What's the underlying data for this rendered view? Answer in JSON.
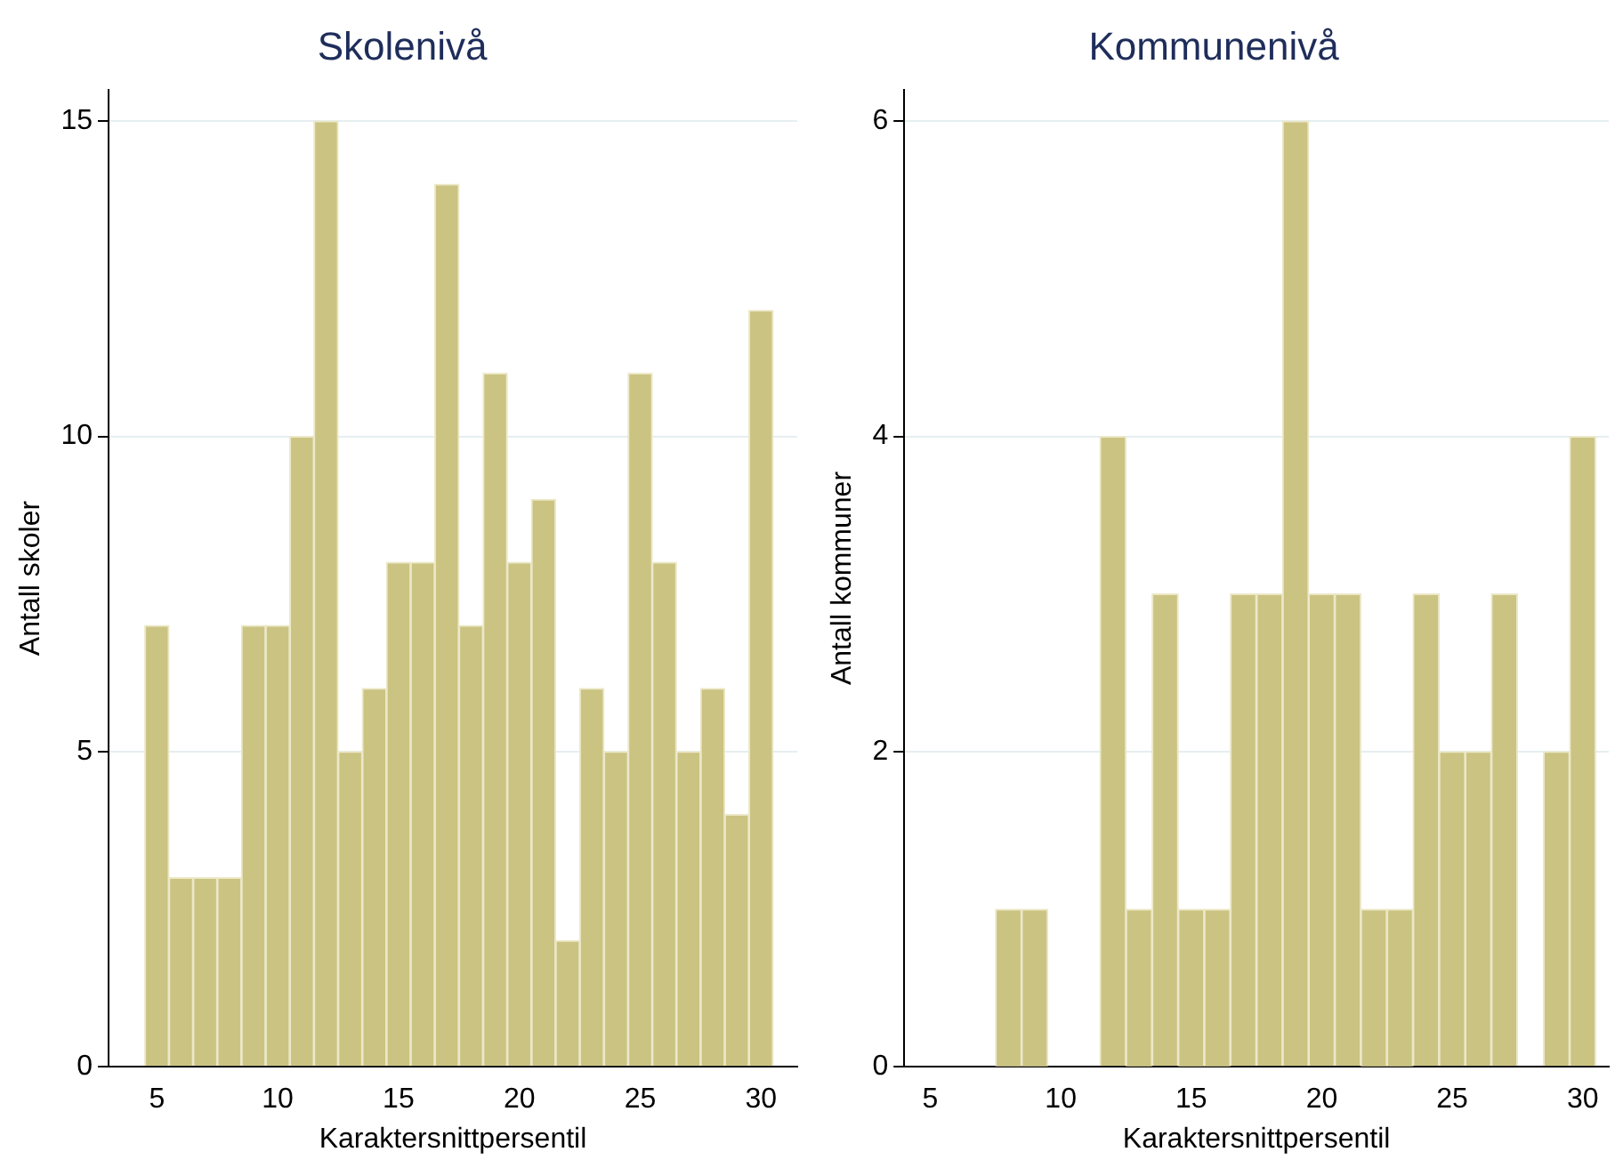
{
  "chart_data": [
    {
      "type": "histogram",
      "title": "Skolenivå",
      "xlabel": "Karaktersnittpersentil",
      "ylabel": "Antall skoler",
      "color": "#cbc382",
      "bins": [
        4.5,
        5.5,
        6.5,
        7.5,
        8.5,
        9.5,
        10.5,
        11.5,
        12.5,
        13.5,
        14.5,
        15.5,
        16.5,
        17.5,
        18.5,
        19.5,
        20.5,
        21.5,
        22.5,
        23.5,
        24.5,
        25.5,
        26.5,
        27.5,
        28.5,
        29.5,
        30.5
      ],
      "values": [
        7,
        3,
        3,
        3,
        7,
        7,
        10,
        15,
        5,
        6,
        8,
        8,
        14,
        7,
        11,
        8,
        9,
        2,
        6,
        5,
        11,
        8,
        5,
        6,
        4,
        12
      ],
      "xlim": [
        3,
        31.5
      ],
      "xticks": [
        5,
        10,
        15,
        20,
        25,
        30
      ],
      "ylim": [
        0,
        15.5
      ],
      "yticks": [
        0,
        5,
        10,
        15
      ],
      "grid": "y",
      "legend": false
    },
    {
      "type": "histogram",
      "title": "Kommunenivå",
      "xlabel": "Karaktersnittpersentil",
      "ylabel": "Antall kommuner",
      "color": "#cbc382",
      "bins": [
        7.5,
        8.5,
        9.5,
        10.5,
        11.5,
        12.5,
        13.5,
        14.5,
        15.5,
        16.5,
        17.5,
        18.5,
        19.5,
        20.5,
        21.5,
        22.5,
        23.5,
        24.5,
        25.5,
        26.5,
        27.5,
        28.5,
        29.5,
        30.5
      ],
      "values": [
        1,
        1,
        0,
        0,
        4,
        1,
        3,
        1,
        1,
        3,
        3,
        6,
        3,
        3,
        1,
        1,
        3,
        2,
        2,
        3,
        0,
        2,
        4
      ],
      "xlim": [
        4,
        31
      ],
      "xticks": [
        5,
        10,
        15,
        20,
        25,
        30
      ],
      "ylim": [
        0,
        6.2
      ],
      "yticks": [
        0,
        2,
        4,
        6
      ],
      "grid": "y",
      "legend": false
    }
  ]
}
